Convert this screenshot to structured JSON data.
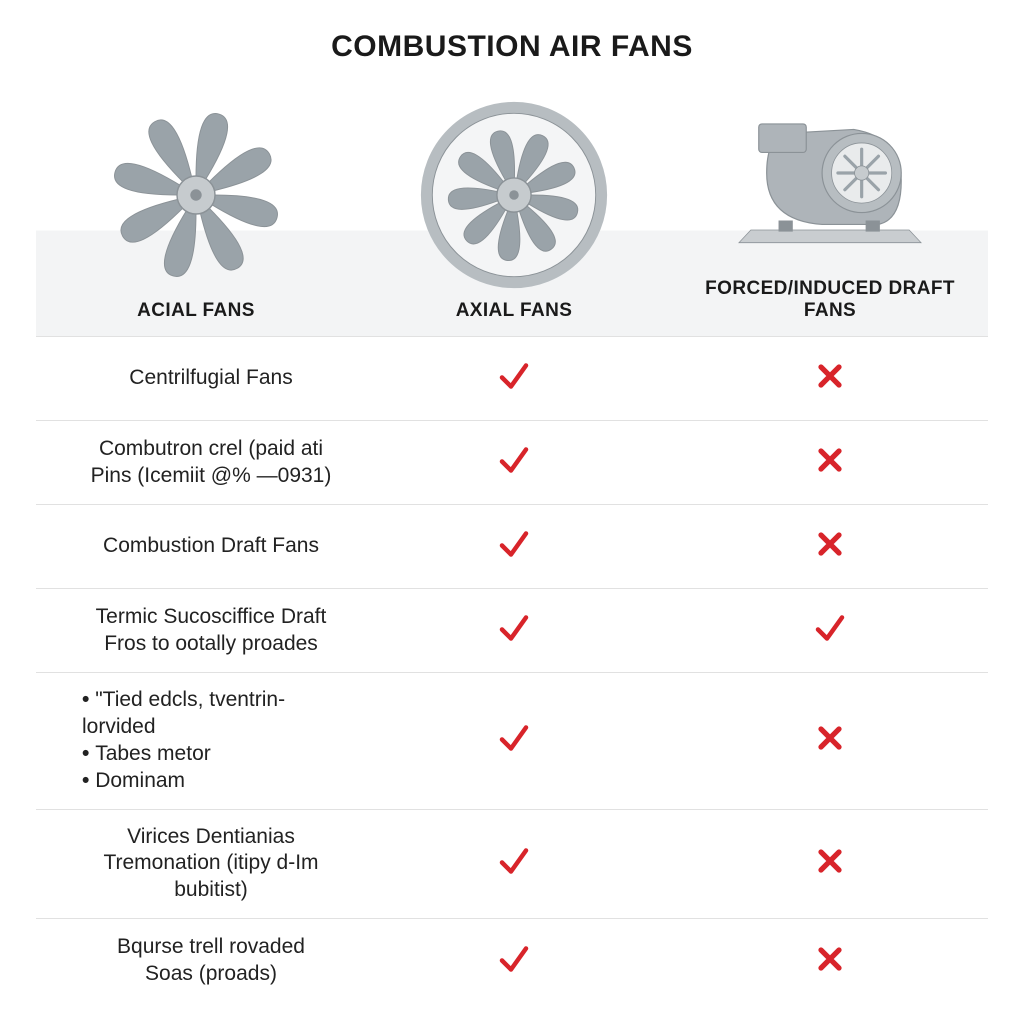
{
  "title": "COMBUSTION AIR FANS",
  "title_fontsize": 30,
  "background_color": "#ffffff",
  "header_band_color": "#f3f4f5",
  "border_color": "#e1e1e1",
  "text_color": "#1a1a1a",
  "columns": [
    {
      "id": "acial",
      "label": "ACIAL FANS",
      "label_fontsize": 19
    },
    {
      "id": "axial",
      "label": "AXIAL FANS",
      "label_fontsize": 19
    },
    {
      "id": "draft",
      "label": "FORCED/INDUCED DRAFT FANS",
      "label_fontsize": 19
    }
  ],
  "illustration": {
    "blade_color": "#9aa3a9",
    "hub_color": "#c6cbce",
    "ring_color": "#b7bdc1",
    "body_color": "#aeb4b9",
    "base_color": "#c9cdd0",
    "shadow_color": "#8b9297"
  },
  "mark_colors": {
    "check": "#d8242a",
    "cross": "#d8242a"
  },
  "feature_fontsize": 21,
  "rows": [
    {
      "type": "text",
      "text": "Centrilfugial Fans",
      "axial": "check",
      "draft": "cross"
    },
    {
      "type": "text",
      "text": "Combutron crel (paid ati\nPins (Icemiit @% —0931)",
      "axial": "check",
      "draft": "cross"
    },
    {
      "type": "text",
      "text": "Combustion Draft Fans",
      "axial": "check",
      "draft": "cross"
    },
    {
      "type": "text",
      "text": "Termic Sucosciffice Draft\nFros to ootally proades",
      "axial": "check",
      "draft": "check"
    },
    {
      "type": "list",
      "items": [
        "\"Tied edcls, tventrin-lorvided",
        "Tabes metor",
        "Dominam"
      ],
      "axial": "check",
      "draft": "cross"
    },
    {
      "type": "text",
      "text": "Virices Dentianias\nTremonation (itipy d-Im bubitist)",
      "axial": "check",
      "draft": "cross"
    },
    {
      "type": "text",
      "text": "Bqurse trell rovaded\nSoas (proads)",
      "axial": "check",
      "draft": "cross"
    }
  ]
}
